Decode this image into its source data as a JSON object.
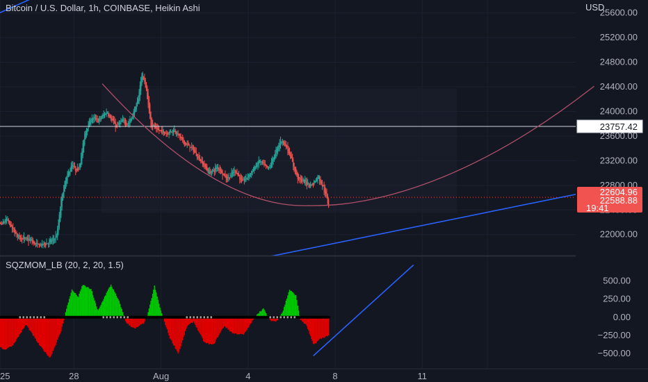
{
  "header": {
    "symbol_title": "Bitcoin / U.S. Dollar, 1h, COINBASE, Heikin Ashi",
    "currency": "USD",
    "indicator_title": "SQZMOM_LB (20, 2, 20, 1.5)"
  },
  "colors": {
    "background": "#131722",
    "up": "#26a69a",
    "down": "#ef5350",
    "trendline": "#2962ff",
    "arc": "#b0506a",
    "mom_up": "#00c800",
    "mom_down": "#e00000",
    "price_tag": "#f05350"
  },
  "chart_data": [
    {
      "type": "candlestick",
      "title": "Bitcoin / U.S. Dollar, 1h, COINBASE, Heikin Ashi",
      "x_ticks": [
        "25",
        "28",
        "Aug",
        "4",
        "8",
        "11"
      ],
      "y_ticks": [
        "25600.00",
        "25200.00",
        "24800.00",
        "24400.00",
        "24000.00",
        "23600.00",
        "23200.00",
        "22800.00",
        "22400.00",
        "22000.00"
      ],
      "ylim": [
        21670,
        25810
      ],
      "tags": {
        "horizontal_line": "23757.42",
        "last_price": "22604.96",
        "secondary_price": "22588.88",
        "countdown": "19:41"
      },
      "price_path": [
        {
          "day": 24.2,
          "price": 22350
        },
        {
          "day": 24.6,
          "price": 22150
        },
        {
          "day": 24.9,
          "price": 22250
        },
        {
          "day": 25.2,
          "price": 22050
        },
        {
          "day": 25.5,
          "price": 21950
        },
        {
          "day": 26.0,
          "price": 21900
        },
        {
          "day": 26.3,
          "price": 21820
        },
        {
          "day": 26.6,
          "price": 21850
        },
        {
          "day": 27.0,
          "price": 21900
        },
        {
          "day": 27.2,
          "price": 22000
        },
        {
          "day": 27.4,
          "price": 22600
        },
        {
          "day": 27.6,
          "price": 22900
        },
        {
          "day": 27.9,
          "price": 23150
        },
        {
          "day": 28.1,
          "price": 23000
        },
        {
          "day": 28.3,
          "price": 23250
        },
        {
          "day": 28.5,
          "price": 23700
        },
        {
          "day": 28.8,
          "price": 23900
        },
        {
          "day": 29.1,
          "price": 23850
        },
        {
          "day": 29.5,
          "price": 24000
        },
        {
          "day": 29.9,
          "price": 23750
        },
        {
          "day": 30.2,
          "price": 23850
        },
        {
          "day": 30.5,
          "price": 23800
        },
        {
          "day": 30.9,
          "price": 24150
        },
        {
          "day": 31.1,
          "price": 24650
        },
        {
          "day": 31.3,
          "price": 24350
        },
        {
          "day": 31.5,
          "price": 23800
        },
        {
          "day": 31.8,
          "price": 23700
        },
        {
          "day": 32.2,
          "price": 23650
        },
        {
          "day": 32.6,
          "price": 23700
        },
        {
          "day": 33.0,
          "price": 23500
        },
        {
          "day": 33.4,
          "price": 23400
        },
        {
          "day": 33.8,
          "price": 23200
        },
        {
          "day": 34.2,
          "price": 23000
        },
        {
          "day": 34.6,
          "price": 23100
        },
        {
          "day": 35.0,
          "price": 22900
        },
        {
          "day": 35.4,
          "price": 23050
        },
        {
          "day": 35.7,
          "price": 22850
        },
        {
          "day": 36.1,
          "price": 23000
        },
        {
          "day": 36.5,
          "price": 23200
        },
        {
          "day": 36.9,
          "price": 23050
        },
        {
          "day": 37.2,
          "price": 23300
        },
        {
          "day": 37.5,
          "price": 23550
        },
        {
          "day": 37.7,
          "price": 23450
        },
        {
          "day": 37.9,
          "price": 23300
        },
        {
          "day": 38.1,
          "price": 23050
        },
        {
          "day": 38.3,
          "price": 22900
        },
        {
          "day": 38.6,
          "price": 22850
        },
        {
          "day": 38.9,
          "price": 22800
        },
        {
          "day": 39.2,
          "price": 22950
        },
        {
          "day": 39.5,
          "price": 22700
        },
        {
          "day": 39.7,
          "price": 22450
        }
      ],
      "trendlines": [
        {
          "from": {
            "day": 24.0,
            "price": 25510
          },
          "to": {
            "day": 30.8,
            "price": 26580
          }
        },
        {
          "from": {
            "day": 36.1,
            "price": 21580
          },
          "to": {
            "day": 59.0,
            "price": 23225
          }
        }
      ],
      "arc": {
        "start": {
          "day": 29.3,
          "price": 24450
        },
        "vertex": {
          "day": 38.8,
          "price": 22470
        },
        "end": {
          "day": 51.9,
          "price": 24410
        }
      }
    },
    {
      "type": "bar",
      "title": "SQZMOM_LB (20, 2, 20, 1.5)",
      "y_ticks": [
        "500.00",
        "250.00",
        "0.00",
        "−250.00",
        "−500.00"
      ],
      "ylim": [
        -700,
        830
      ],
      "momentum": [
        {
          "day": 24.2,
          "value": -300
        },
        {
          "day": 24.8,
          "value": -450
        },
        {
          "day": 25.2,
          "value": -380
        },
        {
          "day": 25.8,
          "value": -100
        },
        {
          "day": 26.4,
          "value": -380
        },
        {
          "day": 26.9,
          "value": -560
        },
        {
          "day": 27.4,
          "value": -200
        },
        {
          "day": 27.6,
          "value": 50
        },
        {
          "day": 27.9,
          "value": 380
        },
        {
          "day": 28.2,
          "value": 280
        },
        {
          "day": 28.4,
          "value": 450
        },
        {
          "day": 28.8,
          "value": 380
        },
        {
          "day": 29.1,
          "value": 80
        },
        {
          "day": 29.4,
          "value": 280
        },
        {
          "day": 29.7,
          "value": 450
        },
        {
          "day": 30.1,
          "value": 200
        },
        {
          "day": 30.4,
          "value": -80
        },
        {
          "day": 30.8,
          "value": -160
        },
        {
          "day": 31.2,
          "value": -80
        },
        {
          "day": 31.4,
          "value": 50
        },
        {
          "day": 31.7,
          "value": 430
        },
        {
          "day": 32.0,
          "value": 80
        },
        {
          "day": 32.4,
          "value": -280
        },
        {
          "day": 32.8,
          "value": -500
        },
        {
          "day": 33.2,
          "value": -120
        },
        {
          "day": 33.5,
          "value": -60
        },
        {
          "day": 34.0,
          "value": -350
        },
        {
          "day": 34.4,
          "value": -380
        },
        {
          "day": 34.9,
          "value": -120
        },
        {
          "day": 35.3,
          "value": -220
        },
        {
          "day": 35.8,
          "value": -240
        },
        {
          "day": 36.1,
          "value": -100
        },
        {
          "day": 36.4,
          "value": 40
        },
        {
          "day": 36.7,
          "value": 120
        },
        {
          "day": 37.0,
          "value": -40
        },
        {
          "day": 37.3,
          "value": -60
        },
        {
          "day": 37.6,
          "value": 80
        },
        {
          "day": 37.9,
          "value": 380
        },
        {
          "day": 38.2,
          "value": 300
        },
        {
          "day": 38.4,
          "value": -30
        },
        {
          "day": 38.7,
          "value": -120
        },
        {
          "day": 39.0,
          "value": -380
        },
        {
          "day": 39.3,
          "value": -300
        },
        {
          "day": 39.7,
          "value": -250
        }
      ],
      "trendline": {
        "from": {
          "day": 39.0,
          "price": -530
        },
        "to": {
          "day": 43.6,
          "price": 720
        }
      }
    }
  ]
}
